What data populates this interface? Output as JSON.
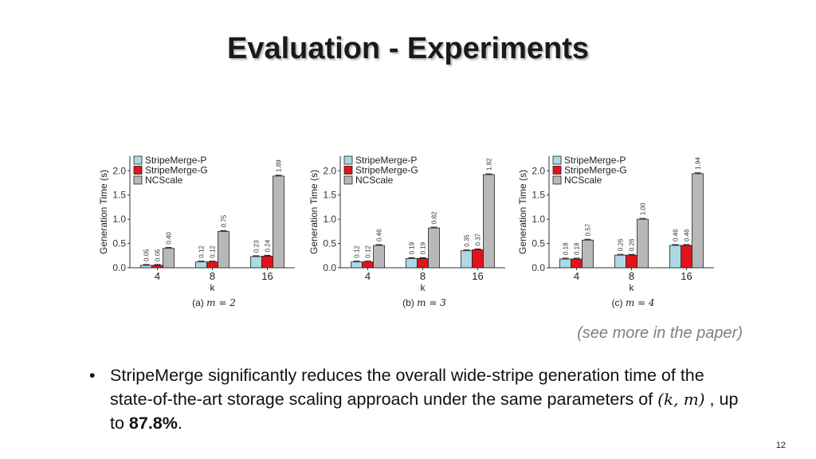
{
  "title": "Evaluation - Experiments",
  "note": "(see more in the paper)",
  "bullet": {
    "symbol": "•",
    "text_before": "StripeMerge significantly reduces the overall wide-stripe generation time of the state-of-the-art storage scaling approach under the same parameters of ",
    "math": "(k, m)",
    "text_middle": " , up to ",
    "highlight": "87.8%",
    "text_after": "."
  },
  "page_number": "12",
  "colors": {
    "StripeMerge-P": "#add8e6",
    "StripeMerge-G": "#e3131b",
    "NCScale": "#b8b8b8"
  },
  "chart_data": [
    {
      "type": "bar",
      "caption_prefix": "(a)",
      "caption_math": "m = 2",
      "xlabel": "k",
      "ylabel": "Generation Time (s)",
      "categories": [
        "4",
        "8",
        "16"
      ],
      "ylim": [
        0,
        2.3
      ],
      "yticks": [
        "0.0",
        "0.5",
        "1.0",
        "1.5",
        "2.0"
      ],
      "legend_position": "top-left",
      "series": [
        {
          "name": "StripeMerge-P",
          "values": [
            0.05,
            0.12,
            0.23
          ],
          "labels": [
            "0.05",
            "0.12",
            "0.23"
          ]
        },
        {
          "name": "StripeMerge-G",
          "values": [
            0.05,
            0.12,
            0.24
          ],
          "labels": [
            "0.05",
            "0.12",
            "0.24"
          ]
        },
        {
          "name": "NCScale",
          "values": [
            0.4,
            0.75,
            1.89
          ],
          "labels": [
            "0.40",
            "0.75",
            "1.89"
          ]
        }
      ]
    },
    {
      "type": "bar",
      "caption_prefix": "(b)",
      "caption_math": "m = 3",
      "xlabel": "k",
      "ylabel": "Generation Time (s)",
      "categories": [
        "4",
        "8",
        "16"
      ],
      "ylim": [
        0,
        2.3
      ],
      "yticks": [
        "0.0",
        "0.5",
        "1.0",
        "1.5",
        "2.0"
      ],
      "legend_position": "top-left",
      "series": [
        {
          "name": "StripeMerge-P",
          "values": [
            0.12,
            0.19,
            0.35
          ],
          "labels": [
            "0.12",
            "0.19",
            "0.35"
          ]
        },
        {
          "name": "StripeMerge-G",
          "values": [
            0.12,
            0.19,
            0.37
          ],
          "labels": [
            "0.12",
            "0.19",
            "0.37"
          ]
        },
        {
          "name": "NCScale",
          "values": [
            0.46,
            0.82,
            1.92
          ],
          "labels": [
            "0.46",
            "0.82",
            "1.92"
          ]
        }
      ]
    },
    {
      "type": "bar",
      "caption_prefix": "(c)",
      "caption_math": "m = 4",
      "xlabel": "k",
      "ylabel": "Generation Time (s)",
      "categories": [
        "4",
        "8",
        "16"
      ],
      "ylim": [
        0,
        2.3
      ],
      "yticks": [
        "0.0",
        "0.5",
        "1.0",
        "1.5",
        "2.0"
      ],
      "legend_position": "top-left",
      "series": [
        {
          "name": "StripeMerge-P",
          "values": [
            0.18,
            0.26,
            0.46
          ],
          "labels": [
            "0.18",
            "0.26",
            "0.46"
          ]
        },
        {
          "name": "StripeMerge-G",
          "values": [
            0.18,
            0.26,
            0.46
          ],
          "labels": [
            "0.18",
            "0.26",
            "0.46"
          ]
        },
        {
          "name": "NCScale",
          "values": [
            0.57,
            1.0,
            1.94
          ],
          "labels": [
            "0.57",
            "1.00",
            "1.94"
          ]
        }
      ]
    }
  ]
}
